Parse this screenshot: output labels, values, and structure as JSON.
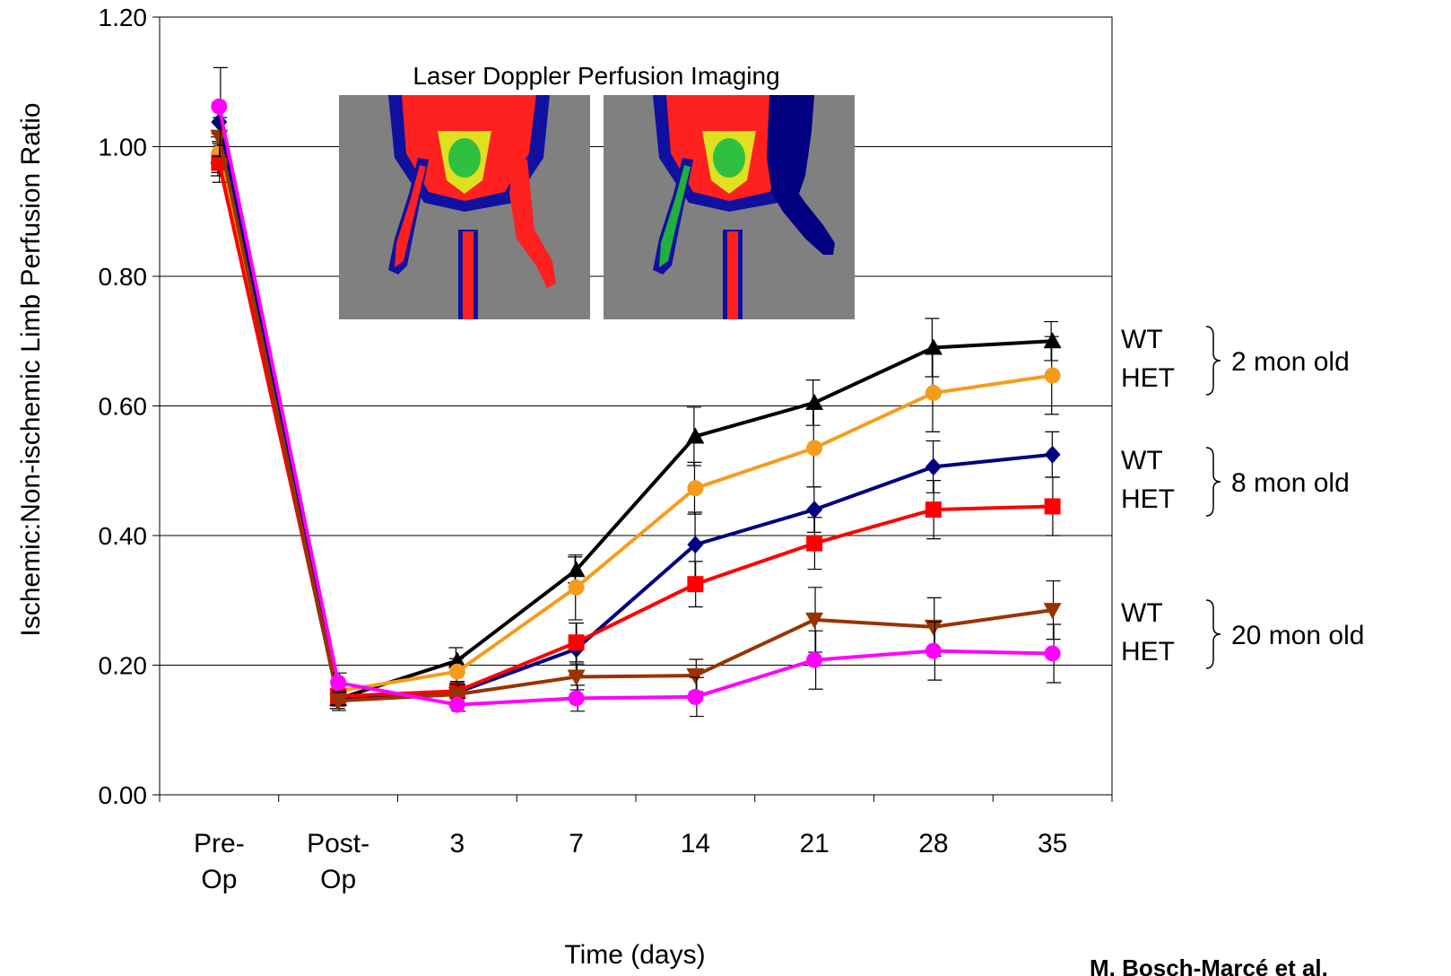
{
  "chart_data": {
    "type": "line",
    "xlabel": "Time (days)",
    "ylabel": "Ischemic:Non-ischemic Limb Perfusion Ratio",
    "categories": [
      [
        "Pre-",
        "Op"
      ],
      [
        "Post-",
        "Op"
      ],
      [
        "3"
      ],
      [
        "7"
      ],
      [
        "14"
      ],
      [
        "21"
      ],
      [
        "28"
      ],
      [
        "35"
      ]
    ],
    "ylim": [
      0,
      1.2
    ],
    "yticks": [
      "0.00",
      "0.20",
      "0.40",
      "0.60",
      "0.80",
      "1.00",
      "1.20"
    ],
    "grid": "horizontal",
    "series": [
      {
        "group": "2 mon old",
        "genotype": "WT",
        "color": "#000000",
        "marker": "triangle-up",
        "values": [
          0.985,
          0.148,
          0.207,
          0.347,
          0.553,
          0.605,
          0.69,
          0.7
        ],
        "errors": [
          0.03,
          0.015,
          0.02,
          0.02,
          0.045,
          0.035,
          0.045,
          0.03
        ]
      },
      {
        "group": "2 mon old",
        "genotype": "HET",
        "color": "#F59C1A",
        "marker": "circle",
        "values": [
          0.99,
          0.16,
          0.19,
          0.32,
          0.473,
          0.535,
          0.62,
          0.647
        ],
        "errors": [
          0.03,
          0.015,
          0.02,
          0.05,
          0.04,
          0.06,
          0.06,
          0.06
        ]
      },
      {
        "group": "8 mon old",
        "genotype": "WT",
        "color": "#000080",
        "marker": "diamond",
        "values": [
          1.038,
          0.148,
          0.158,
          0.225,
          0.386,
          0.44,
          0.506,
          0.525
        ],
        "errors": [
          0.03,
          0.015,
          0.015,
          0.04,
          0.05,
          0.035,
          0.04,
          0.035
        ]
      },
      {
        "group": "8 mon old",
        "genotype": "HET",
        "color": "#FF0000",
        "marker": "square",
        "values": [
          0.975,
          0.152,
          0.16,
          0.235,
          0.325,
          0.388,
          0.44,
          0.445
        ],
        "errors": [
          0.03,
          0.015,
          0.015,
          0.03,
          0.035,
          0.04,
          0.045,
          0.045
        ]
      },
      {
        "group": "20 mon old",
        "genotype": "WT",
        "color": "#993300",
        "marker": "triangle-down",
        "values": [
          1.015,
          0.145,
          0.155,
          0.182,
          0.184,
          0.27,
          0.259,
          0.285
        ],
        "errors": [
          0.03,
          0.015,
          0.015,
          0.02,
          0.025,
          0.05,
          0.045,
          0.045
        ]
      },
      {
        "group": "20 mon old",
        "genotype": "HET",
        "color": "#FF00FF",
        "marker": "circle",
        "values": [
          1.062,
          0.173,
          0.139,
          0.149,
          0.151,
          0.208,
          0.222,
          0.218
        ],
        "errors": [
          0.06,
          0.015,
          0.01,
          0.02,
          0.03,
          0.045,
          0.045,
          0.045
        ]
      }
    ],
    "legend": [
      {
        "labels": [
          "WT",
          "HET"
        ],
        "group_label": "2 mon old"
      },
      {
        "labels": [
          "WT",
          "HET"
        ],
        "group_label": "8 mon old"
      },
      {
        "labels": [
          "WT",
          "HET"
        ],
        "group_label": "20 mon old"
      }
    ],
    "inset": {
      "title": "Laser Doppler Perfusion Imaging",
      "panels": [
        "laser-doppler-image-left",
        "laser-doppler-image-right"
      ],
      "background": "#808080"
    },
    "citation": "M. Bosch-Marcé et al."
  }
}
